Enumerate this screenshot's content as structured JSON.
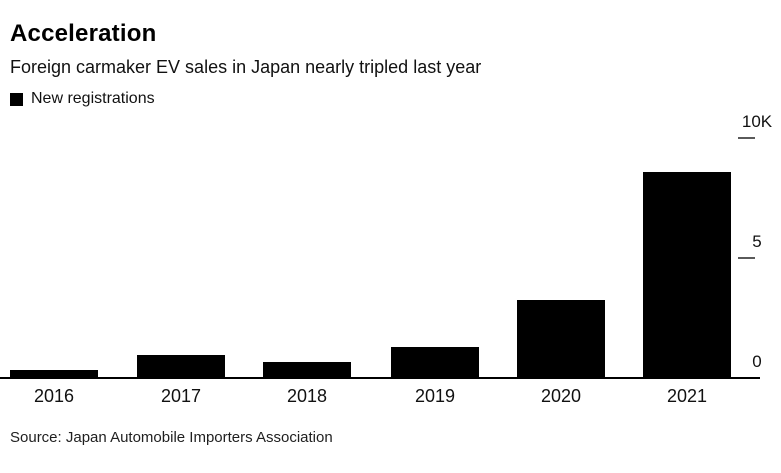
{
  "header": {
    "title": "Acceleration",
    "subtitle": "Foreign carmaker EV sales in Japan nearly tripled last year"
  },
  "legend": {
    "label": "New registrations",
    "swatch_color": "#000000"
  },
  "chart_data": {
    "type": "bar",
    "title": "Acceleration",
    "subtitle": "Foreign carmaker EV sales in Japan nearly tripled last year",
    "series_name": "New registrations",
    "categories": [
      "2016",
      "2017",
      "2018",
      "2019",
      "2020",
      "2021"
    ],
    "values": [
      350,
      950,
      650,
      1300,
      3250,
      8600
    ],
    "xlabel": "",
    "ylabel": "",
    "ylim": [
      0,
      10000
    ],
    "yticks": [
      {
        "label": "10K",
        "value": 10000,
        "tick": true
      },
      {
        "label": "5",
        "value": 5000,
        "tick": true
      },
      {
        "label": "0",
        "value": 0,
        "tick": false
      }
    ],
    "axis_side": "right",
    "bar_color": "#000000",
    "grid": false,
    "legend_position": "top-left"
  },
  "footer": {
    "source": "Source: Japan Automobile Importers Association"
  }
}
